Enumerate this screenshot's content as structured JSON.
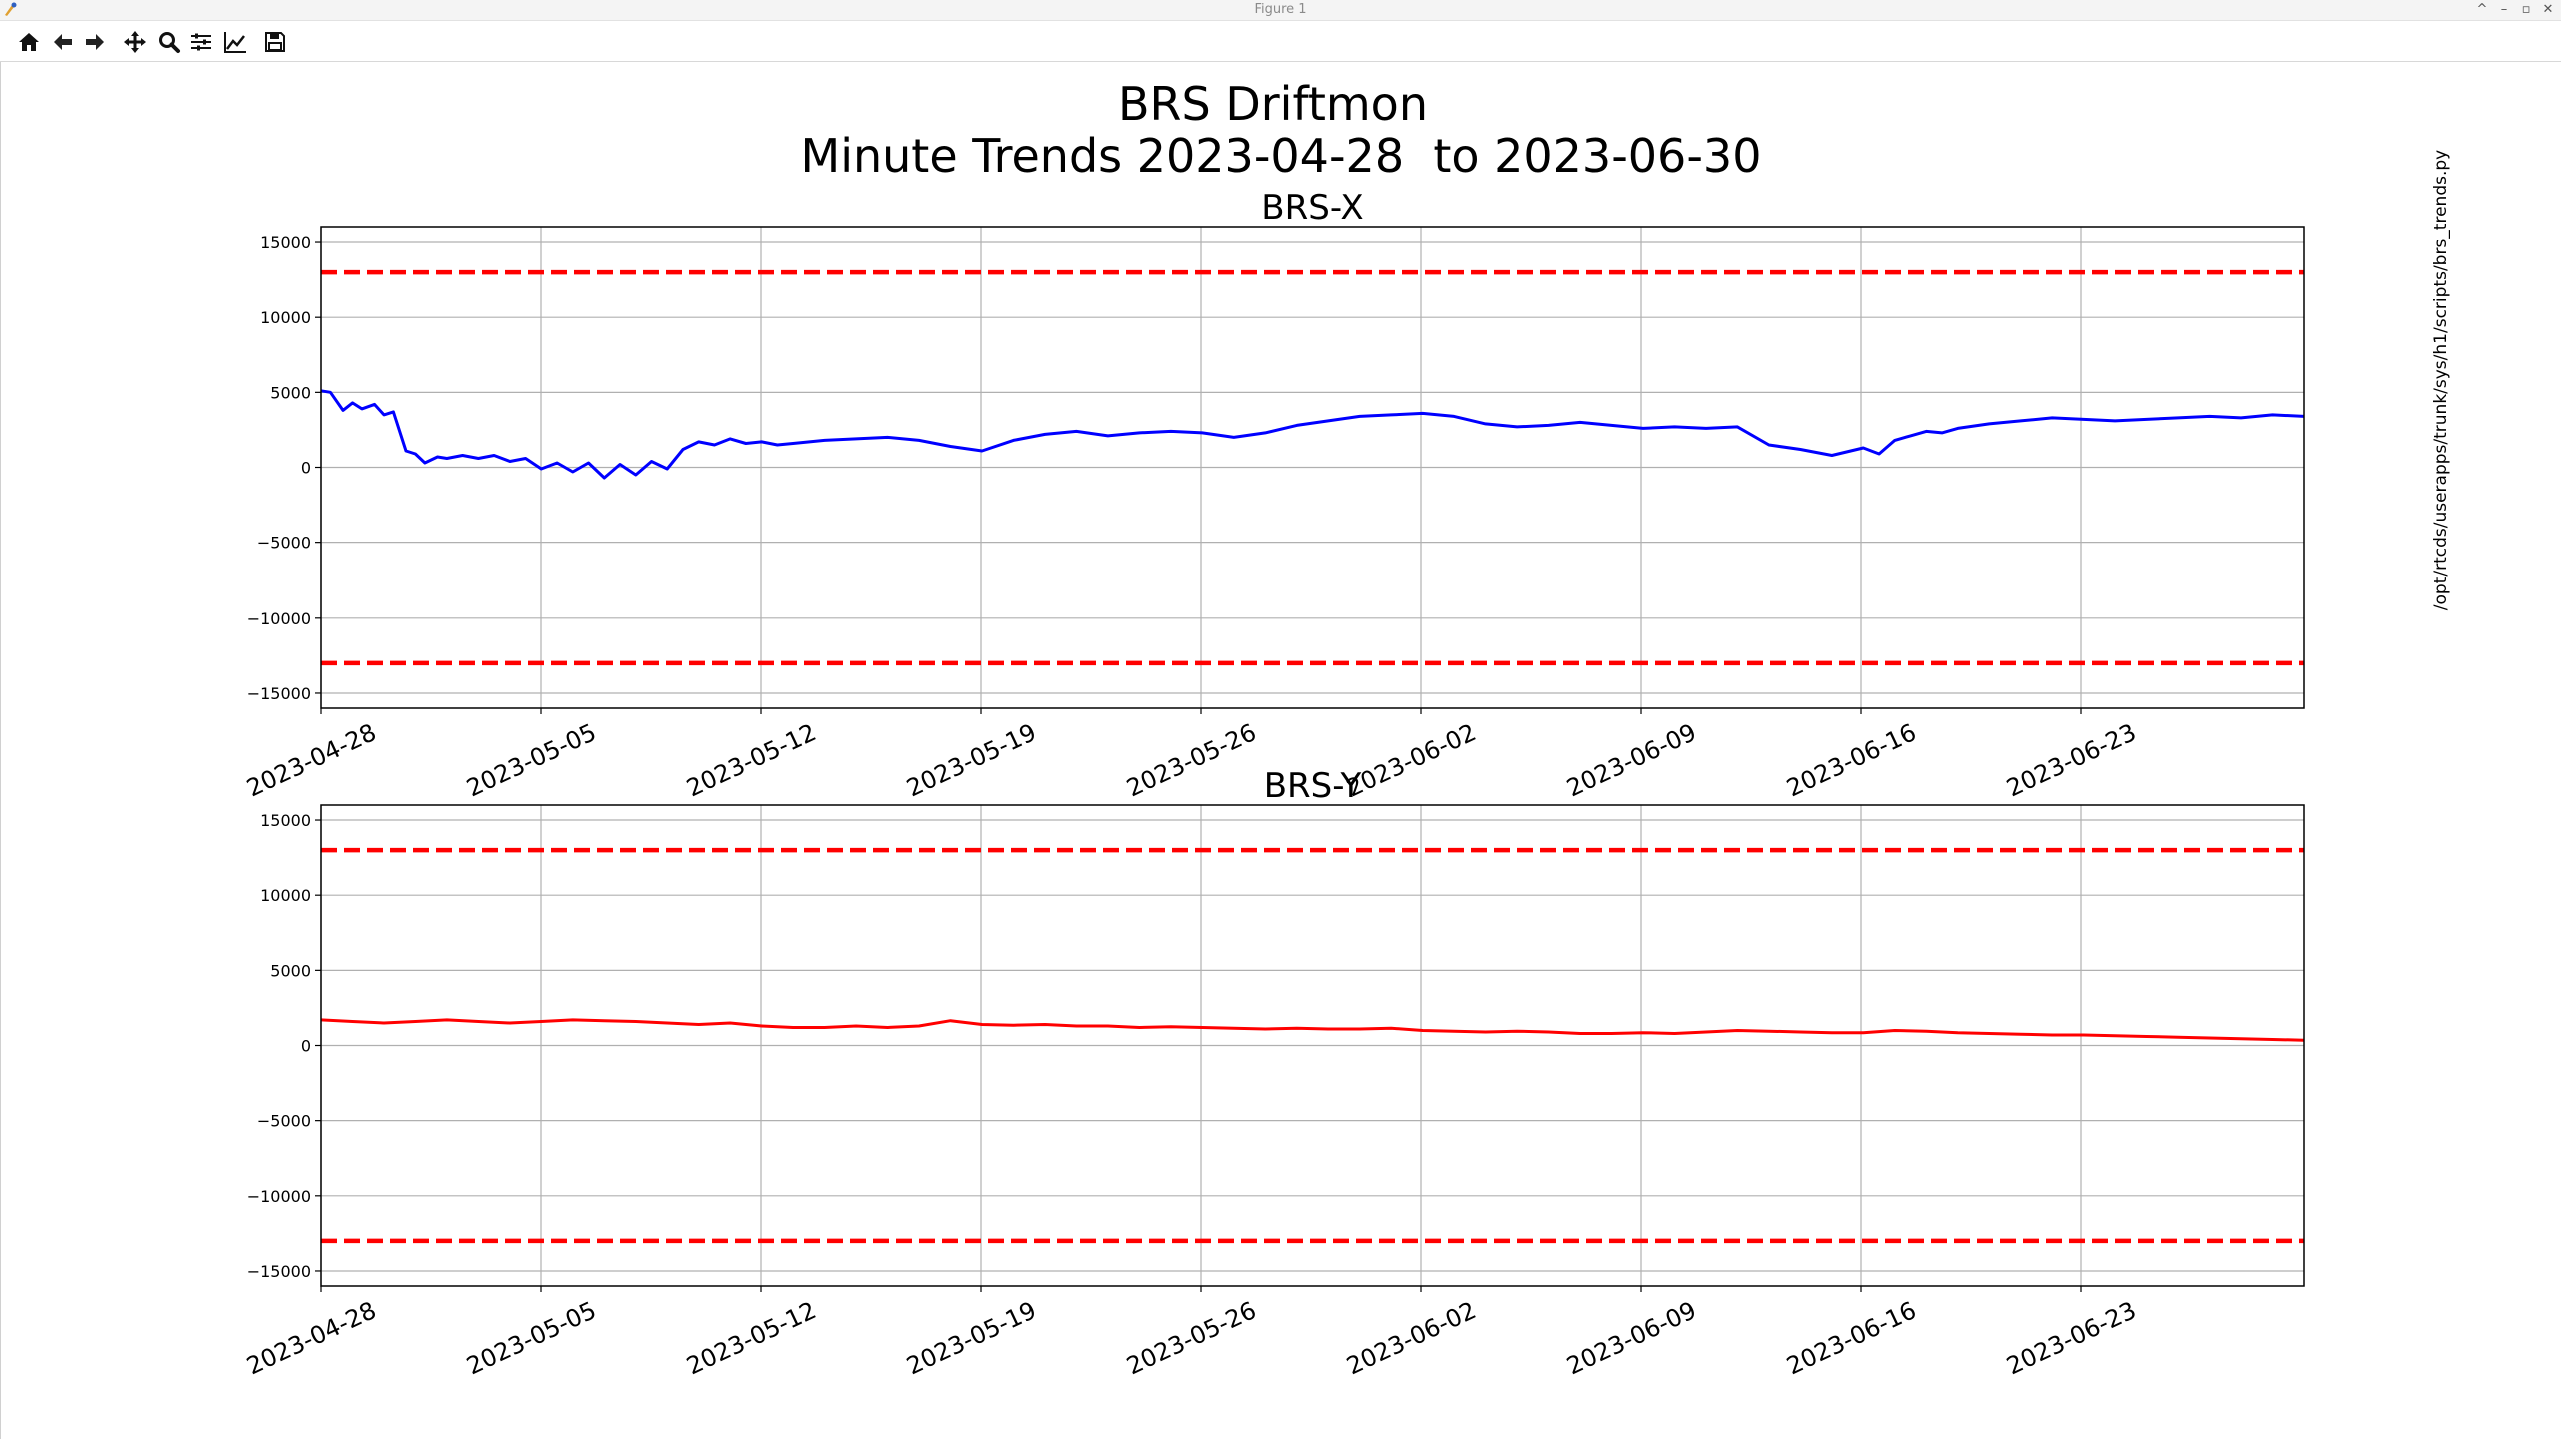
{
  "window": {
    "title": "Figure 1",
    "controls": [
      "^",
      "–",
      "▫",
      "✕"
    ]
  },
  "toolbar": {
    "tools": [
      {
        "name": "home-icon",
        "label": "Home"
      },
      {
        "name": "back-arrow-icon",
        "label": "Back"
      },
      {
        "name": "forward-arrow-icon",
        "label": "Forward"
      },
      {
        "name": "pan-icon",
        "label": "Pan"
      },
      {
        "name": "zoom-icon",
        "label": "Zoom"
      },
      {
        "name": "configure-subplots-icon",
        "label": "Subplots"
      },
      {
        "name": "edit-axes-icon",
        "label": "Customize"
      },
      {
        "name": "save-icon",
        "label": "Save"
      }
    ]
  },
  "figure": {
    "title_line1": "BRS Driftmon",
    "title_line2": "Minute Trends 2023-04-28  to 2023-06-30",
    "side_label": "/opt/rtcds/userapps/trunk/sys/h1/scripts/brs_trends.py",
    "colors": {
      "brs_x_line": "#0000ff",
      "brs_y_line": "#ff0000",
      "threshold": "#ff0000",
      "grid": "#b0b0b0"
    }
  },
  "chart_data": [
    {
      "type": "line",
      "title": "BRS-X",
      "xlabel": "",
      "ylabel": "",
      "x_tick_labels": [
        "2023-04-28",
        "2023-05-05",
        "2023-05-12",
        "2023-05-19",
        "2023-05-26",
        "2023-06-02",
        "2023-06-09",
        "2023-06-16",
        "2023-06-23"
      ],
      "xlim": [
        0,
        63
      ],
      "ylim": [
        -16000,
        16000
      ],
      "y_ticks": [
        15000,
        10000,
        5000,
        0,
        -5000,
        -10000,
        -15000
      ],
      "y_tick_labels": [
        "15000",
        "10000",
        "5000",
        "0",
        "−5000",
        "−10000",
        "−15000"
      ],
      "grid": true,
      "thresholds": [
        13000,
        -13000
      ],
      "x": [
        0,
        0.3,
        0.7,
        1,
        1.3,
        1.7,
        2,
        2.3,
        2.7,
        3,
        3.3,
        3.7,
        4,
        4.5,
        5,
        5.5,
        6,
        6.5,
        7,
        7.5,
        8,
        8.5,
        9,
        9.5,
        10,
        10.5,
        11,
        11.5,
        12,
        12.5,
        13,
        13.5,
        14,
        14.5,
        15,
        16,
        17,
        18,
        19,
        20,
        21,
        22,
        23,
        24,
        25,
        26,
        27,
        28,
        29,
        30,
        31,
        32,
        33,
        34,
        35,
        36,
        37,
        38,
        39,
        40,
        41,
        42,
        43,
        44,
        45,
        46,
        47,
        48,
        49,
        49.5,
        50,
        50.5,
        51,
        51.5,
        52,
        53,
        54,
        55,
        56,
        57,
        58,
        59,
        60,
        61,
        62,
        63
      ],
      "y": [
        5100,
        5000,
        3800,
        4300,
        3900,
        4200,
        3500,
        3700,
        1100,
        900,
        300,
        700,
        600,
        800,
        600,
        800,
        400,
        600,
        -100,
        300,
        -300,
        300,
        -700,
        200,
        -500,
        400,
        -100,
        1200,
        1700,
        1500,
        1900,
        1600,
        1700,
        1500,
        1600,
        1800,
        1900,
        2000,
        1800,
        1400,
        1100,
        1800,
        2200,
        2400,
        2100,
        2300,
        2400,
        2300,
        2000,
        2300,
        2800,
        3100,
        3400,
        3500,
        3600,
        3400,
        2900,
        2700,
        2800,
        3000,
        2800,
        2600,
        2700,
        2600,
        2700,
        1500,
        1200,
        800,
        1300,
        900,
        1800,
        2100,
        2400,
        2300,
        2600,
        2900,
        3100,
        3300,
        3200,
        3100,
        3200,
        3300,
        3400,
        3300,
        3500,
        3400
      ]
    },
    {
      "type": "line",
      "title": "BRS-Y",
      "xlabel": "",
      "ylabel": "",
      "x_tick_labels": [
        "2023-04-28",
        "2023-05-05",
        "2023-05-12",
        "2023-05-19",
        "2023-05-26",
        "2023-06-02",
        "2023-06-09",
        "2023-06-16",
        "2023-06-23"
      ],
      "xlim": [
        0,
        63
      ],
      "ylim": [
        -16000,
        16000
      ],
      "y_ticks": [
        15000,
        10000,
        5000,
        0,
        -5000,
        -10000,
        -15000
      ],
      "y_tick_labels": [
        "15000",
        "10000",
        "5000",
        "0",
        "−5000",
        "−10000",
        "−15000"
      ],
      "grid": true,
      "thresholds": [
        13000,
        -13000
      ],
      "x": [
        0,
        1,
        2,
        3,
        4,
        5,
        6,
        7,
        8,
        9,
        10,
        11,
        12,
        13,
        14,
        15,
        16,
        17,
        18,
        19,
        20,
        21,
        22,
        23,
        24,
        25,
        26,
        27,
        28,
        29,
        30,
        31,
        32,
        33,
        34,
        35,
        36,
        37,
        38,
        39,
        40,
        41,
        42,
        43,
        44,
        45,
        46,
        47,
        48,
        49,
        50,
        51,
        52,
        53,
        54,
        55,
        56,
        57,
        58,
        59,
        60,
        61,
        62,
        63
      ],
      "y": [
        1700,
        1600,
        1500,
        1600,
        1700,
        1600,
        1500,
        1600,
        1700,
        1650,
        1600,
        1500,
        1400,
        1500,
        1300,
        1200,
        1200,
        1300,
        1200,
        1300,
        1650,
        1400,
        1350,
        1400,
        1300,
        1300,
        1200,
        1250,
        1200,
        1150,
        1100,
        1150,
        1100,
        1100,
        1150,
        1000,
        950,
        900,
        950,
        900,
        800,
        800,
        850,
        800,
        900,
        1000,
        950,
        900,
        850,
        850,
        1000,
        950,
        850,
        800,
        750,
        700,
        700,
        650,
        600,
        550,
        500,
        450,
        400,
        350
      ]
    }
  ]
}
